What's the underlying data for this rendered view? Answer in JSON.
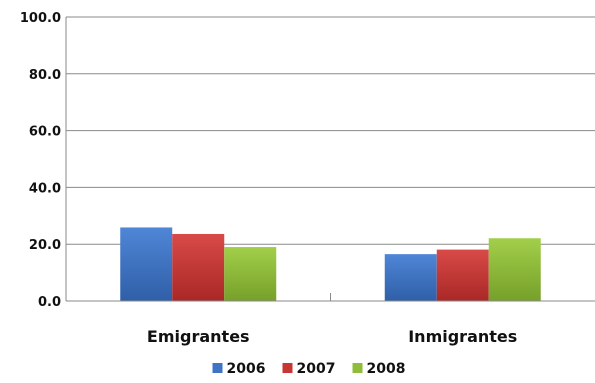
{
  "chart_data": {
    "type": "bar",
    "categories": [
      "Emigrantes",
      "Inmigrantes"
    ],
    "series": [
      {
        "name": "2006",
        "color": "#3f74c4",
        "values": [
          25.9,
          16.5
        ]
      },
      {
        "name": "2007",
        "color": "#c63634",
        "values": [
          23.6,
          18.1
        ]
      },
      {
        "name": "2008",
        "color": "#8fbc3a",
        "values": [
          19.0,
          22.1
        ]
      }
    ],
    "ylim": [
      0,
      100
    ],
    "yticks": [
      "0.0",
      "20.0",
      "40.0",
      "60.0",
      "80.0",
      "100.0"
    ],
    "grid": true,
    "legend_position": "bottom",
    "title": "",
    "xlabel": "",
    "ylabel": ""
  }
}
